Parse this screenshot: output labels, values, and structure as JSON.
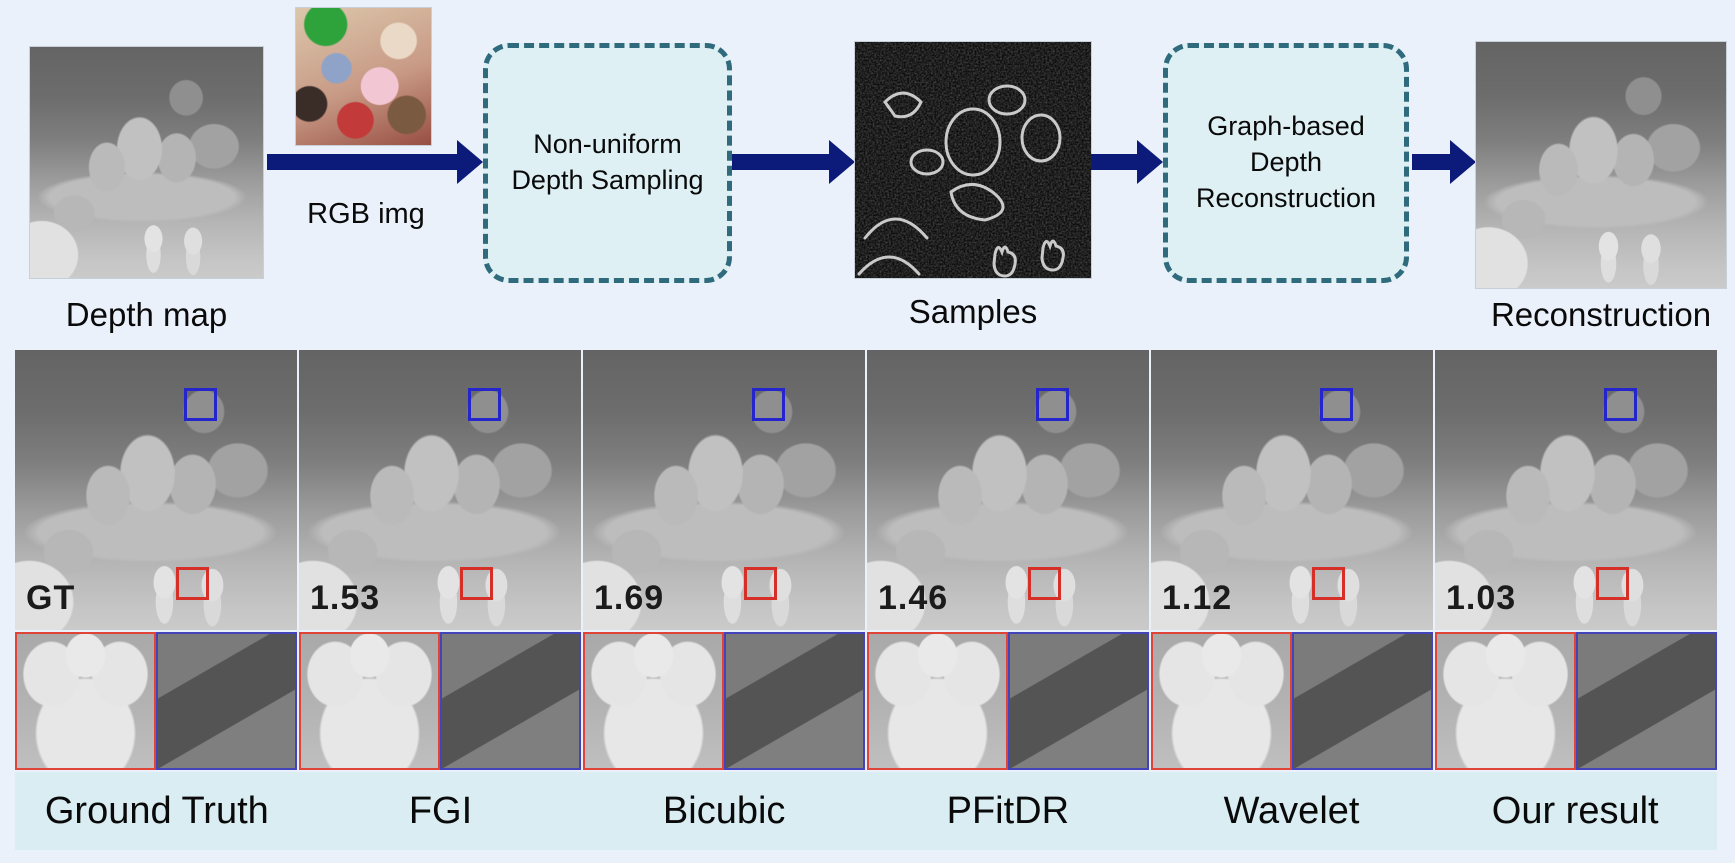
{
  "pipeline": {
    "depth_map_label": "Depth map",
    "rgb_img_label": "RGB img",
    "sampling_box": {
      "lines": [
        "Non-uniform",
        "Depth Sampling"
      ]
    },
    "samples_label": "Samples",
    "reconstruction_box": {
      "lines": [
        "Graph-based",
        "Depth",
        "Reconstruction"
      ]
    },
    "reconstruction_label": "Reconstruction"
  },
  "comparison": {
    "panels": [
      {
        "metric": "GT",
        "method": "Ground Truth"
      },
      {
        "metric": "1.53",
        "method": "FGI"
      },
      {
        "metric": "1.69",
        "method": "Bicubic"
      },
      {
        "metric": "1.46",
        "method": "PFitDR"
      },
      {
        "metric": "1.12",
        "method": "Wavelet"
      },
      {
        "metric": "1.03",
        "method": "Our result"
      }
    ]
  },
  "colors": {
    "page_background": "#eaf1fb",
    "label_band": "#d9edf2",
    "process_box_fill": "#def0f4",
    "process_box_border": "#2f6b7c",
    "arrow": "#0c1b7a",
    "highlight_blue": "#2525cd",
    "highlight_red": "#d52f28",
    "text": "#0d0d0d"
  }
}
